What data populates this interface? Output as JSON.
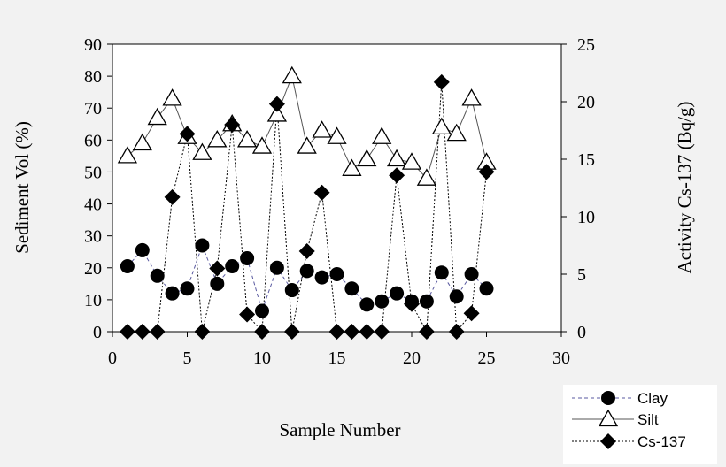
{
  "chart_data": {
    "type": "scatter",
    "xlabel": "Sample Number",
    "ylabel": "Sediment Vol (%)",
    "y2label": "Activity Cs-137 (Bq/g)",
    "xlim": [
      0,
      30
    ],
    "ylim": [
      0,
      90
    ],
    "y2lim": [
      0,
      25
    ],
    "xticks": [
      0,
      5,
      10,
      15,
      20,
      25,
      30
    ],
    "yticks": [
      0,
      10,
      20,
      30,
      40,
      50,
      60,
      70,
      80,
      90
    ],
    "y2ticks": [
      0,
      5,
      10,
      15,
      20,
      25
    ],
    "grid": false,
    "legend_position": "bottom-right",
    "x": [
      1,
      2,
      3,
      4,
      5,
      6,
      7,
      8,
      9,
      10,
      11,
      12,
      13,
      14,
      15,
      16,
      17,
      18,
      19,
      20,
      21,
      22,
      23,
      24,
      25
    ],
    "series": [
      {
        "name": "Clay",
        "axis": "left",
        "marker": "circle",
        "line": "dashed",
        "color": "#5a5aa0",
        "values": [
          20.5,
          25.5,
          17.5,
          12,
          13.5,
          27,
          15,
          20.5,
          23,
          6.5,
          20,
          13,
          19,
          17,
          18,
          13.5,
          8.5,
          9.5,
          12,
          9.5,
          9.5,
          18.5,
          11,
          18,
          13.5
        ]
      },
      {
        "name": "Silt",
        "axis": "left",
        "marker": "triangle",
        "line": "solid",
        "color": "#555555",
        "values": [
          55,
          59,
          67,
          73,
          61,
          56,
          60,
          65,
          60,
          58,
          68,
          80,
          58,
          63,
          61,
          51,
          54,
          61,
          54,
          53,
          48,
          64,
          62,
          73,
          53
        ]
      },
      {
        "name": "Cs-137",
        "axis": "right",
        "marker": "diamond",
        "line": "dotted",
        "color": "#000000",
        "values": [
          0,
          0,
          0,
          11.7,
          17.2,
          0,
          5.5,
          18,
          1.5,
          0,
          19.8,
          0,
          7,
          12.1,
          0,
          0,
          0,
          0,
          13.6,
          2.4,
          0,
          21.7,
          0,
          1.6,
          13.9
        ]
      }
    ]
  }
}
